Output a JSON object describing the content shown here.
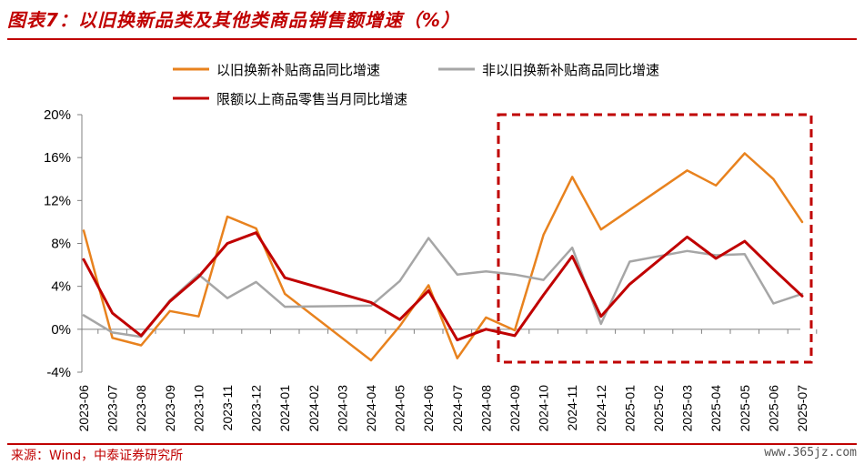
{
  "title": "图表7：以旧换新品类及其他类商品销售额增速（%）",
  "source": "来源：Wind，中泰证券研究所",
  "watermark": "www.365jz.com",
  "chart_data": {
    "type": "line",
    "title": "图表7：以旧换新品类及其他类商品销售额增速（%）",
    "categories": [
      "2023-06",
      "2023-07",
      "2023-08",
      "2023-09",
      "2023-10",
      "2023-11",
      "2023-12",
      "2024-01",
      "2024-02",
      "2024-03",
      "2024-04",
      "2024-05",
      "2024-06",
      "2024-07",
      "2024-08",
      "2024-09",
      "2024-10",
      "2024-11",
      "2024-12",
      "2025-01",
      "2025-02",
      "2025-03",
      "2025-04",
      "2025-05",
      "2025-06",
      "2025-07"
    ],
    "ylim": [
      -4,
      20
    ],
    "yticks": [
      -4,
      0,
      4,
      8,
      12,
      16,
      20
    ],
    "ytick_labels": [
      "-4%",
      "0%",
      "4%",
      "8%",
      "12%",
      "16%",
      "20%"
    ],
    "grid": false,
    "legend_position": "top",
    "series": [
      {
        "name": "以旧换新补贴商品同比增速",
        "color": "#E8821E",
        "values": [
          9.2,
          -0.8,
          -1.5,
          1.7,
          1.2,
          10.5,
          9.4,
          3.3,
          null,
          null,
          -2.9,
          0.3,
          4.1,
          -2.7,
          1.1,
          -0.1,
          8.8,
          14.2,
          9.3,
          null,
          null,
          14.8,
          13.4,
          16.4,
          14.0,
          10.0
        ]
      },
      {
        "name": "非以旧换新补贴商品同比增速",
        "color": "#A6A6A6",
        "values": [
          1.3,
          -0.3,
          -0.7,
          2.7,
          5.1,
          2.9,
          4.4,
          2.1,
          null,
          null,
          2.2,
          4.5,
          8.5,
          5.1,
          5.4,
          5.1,
          4.6,
          7.6,
          0.5,
          6.3,
          null,
          7.3,
          6.9,
          7.0,
          2.4,
          3.3
        ]
      },
      {
        "name": "限额以上商品零售当月同比增速",
        "color": "#C00000",
        "values": [
          6.5,
          1.5,
          -0.6,
          2.6,
          4.9,
          8.0,
          9.0,
          4.8,
          null,
          null,
          2.5,
          0.9,
          3.6,
          -1.0,
          0.0,
          -0.6,
          3.2,
          6.8,
          1.2,
          4.2,
          null,
          8.6,
          6.6,
          8.2,
          5.6,
          3.1
        ]
      }
    ],
    "highlight_box": {
      "style": "dashed",
      "color": "#C00000",
      "from": "2024-09",
      "to": "2025-07"
    }
  }
}
